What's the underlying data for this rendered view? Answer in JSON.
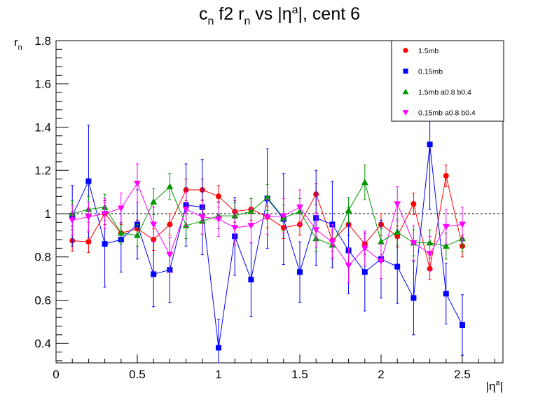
{
  "chart_data": {
    "type": "scatter",
    "title": {
      "main": "c",
      "main_sub": "n",
      "mid1": " f2 r",
      "mid1_sub": "n",
      "mid2": " vs |η",
      "mid2_sup": "a",
      "tail": "|, cent 6"
    },
    "xlabel": {
      "base": "|η",
      "sup": "a",
      "tail": "|"
    },
    "ylabel": {
      "base": "r",
      "sub": "n"
    },
    "xlim": [
      0,
      2.75
    ],
    "ylim": [
      0.31,
      1.8
    ],
    "xticks": [
      0,
      0.5,
      1,
      1.5,
      2,
      2.5
    ],
    "xtick_labels": [
      "0",
      "0.5",
      "1",
      "1.5",
      "2",
      "2.5"
    ],
    "yticks": [
      0.4,
      0.6,
      0.8,
      1.0,
      1.2,
      1.4,
      1.6,
      1.8
    ],
    "ytick_labels": [
      "0.4",
      "0.6",
      "0.8",
      "1",
      "1.2",
      "1.4",
      "1.6",
      "1.8"
    ],
    "reference_line": 1.0,
    "grid": false,
    "legend_position": "top-right",
    "x": [
      0.1,
      0.2,
      0.3,
      0.4,
      0.5,
      0.6,
      0.7,
      0.8,
      0.9,
      1.0,
      1.1,
      1.2,
      1.3,
      1.4,
      1.5,
      1.6,
      1.7,
      1.8,
      1.9,
      2.0,
      2.1,
      2.2,
      2.3,
      2.4,
      2.5
    ],
    "series": [
      {
        "name": "1.5mb",
        "color": "#ff0000",
        "marker": "circle",
        "values": [
          0.875,
          0.87,
          1.0,
          0.91,
          0.93,
          0.88,
          0.95,
          1.11,
          1.11,
          1.08,
          1.01,
          1.02,
          0.985,
          0.935,
          0.95,
          1.09,
          0.875,
          0.95,
          0.86,
          0.95,
          0.895,
          1.045,
          0.745,
          1.175,
          0.85
        ],
        "errors": [
          0.05,
          0.05,
          0.05,
          0.04,
          0.04,
          0.05,
          0.05,
          0.05,
          0.05,
          0.05,
          0.05,
          0.05,
          0.05,
          0.05,
          0.05,
          0.05,
          0.05,
          0.05,
          0.05,
          0.05,
          0.05,
          0.05,
          0.05,
          0.05,
          0.05
        ]
      },
      {
        "name": "0.15mb",
        "color": "#0000ff",
        "marker": "square",
        "values": [
          0.99,
          1.15,
          0.86,
          0.88,
          0.95,
          0.72,
          0.74,
          1.04,
          1.03,
          0.38,
          0.895,
          0.695,
          1.07,
          0.975,
          0.73,
          0.98,
          0.95,
          0.83,
          0.73,
          0.79,
          0.755,
          0.61,
          1.32,
          0.63,
          0.485
        ],
        "errors": [
          0.14,
          0.26,
          0.2,
          0.15,
          0.16,
          0.15,
          0.15,
          0.19,
          0.22,
          0.13,
          0.18,
          0.17,
          0.23,
          0.21,
          0.14,
          0.22,
          0.2,
          0.2,
          0.18,
          0.18,
          0.17,
          0.17,
          0.3,
          0.14,
          0.14
        ]
      },
      {
        "name": "1.5mb a0.8 b0.4",
        "color": "#009900",
        "marker": "triangle-up",
        "values": [
          1.0,
          1.02,
          1.03,
          0.91,
          0.9,
          1.055,
          1.125,
          0.945,
          0.965,
          0.99,
          0.99,
          1.01,
          1.075,
          0.98,
          1.01,
          0.885,
          0.855,
          1.015,
          1.145,
          0.87,
          0.915,
          0.865,
          0.865,
          0.85,
          0.885
        ],
        "errors": [
          0.06,
          0.06,
          0.06,
          0.05,
          0.05,
          0.06,
          0.06,
          0.06,
          0.06,
          0.06,
          0.06,
          0.06,
          0.06,
          0.06,
          0.06,
          0.06,
          0.06,
          0.06,
          0.08,
          0.06,
          0.06,
          0.06,
          0.06,
          0.06,
          0.06
        ]
      },
      {
        "name": "0.15mb a0.8 b0.4",
        "color": "#ff00ff",
        "marker": "triangle-down",
        "values": [
          0.97,
          0.985,
          1.0,
          1.025,
          1.14,
          0.95,
          0.81,
          1.02,
          0.985,
          0.975,
          0.935,
          0.945,
          0.985,
          0.99,
          1.03,
          0.925,
          0.87,
          0.76,
          0.84,
          0.78,
          1.045,
          0.865,
          0.815,
          0.94,
          0.95
        ],
        "errors": [
          0.07,
          0.07,
          0.07,
          0.07,
          0.09,
          0.08,
          0.08,
          0.08,
          0.08,
          0.08,
          0.08,
          0.08,
          0.08,
          0.08,
          0.08,
          0.08,
          0.08,
          0.08,
          0.08,
          0.08,
          0.08,
          0.08,
          0.08,
          0.08,
          0.08
        ]
      }
    ]
  }
}
